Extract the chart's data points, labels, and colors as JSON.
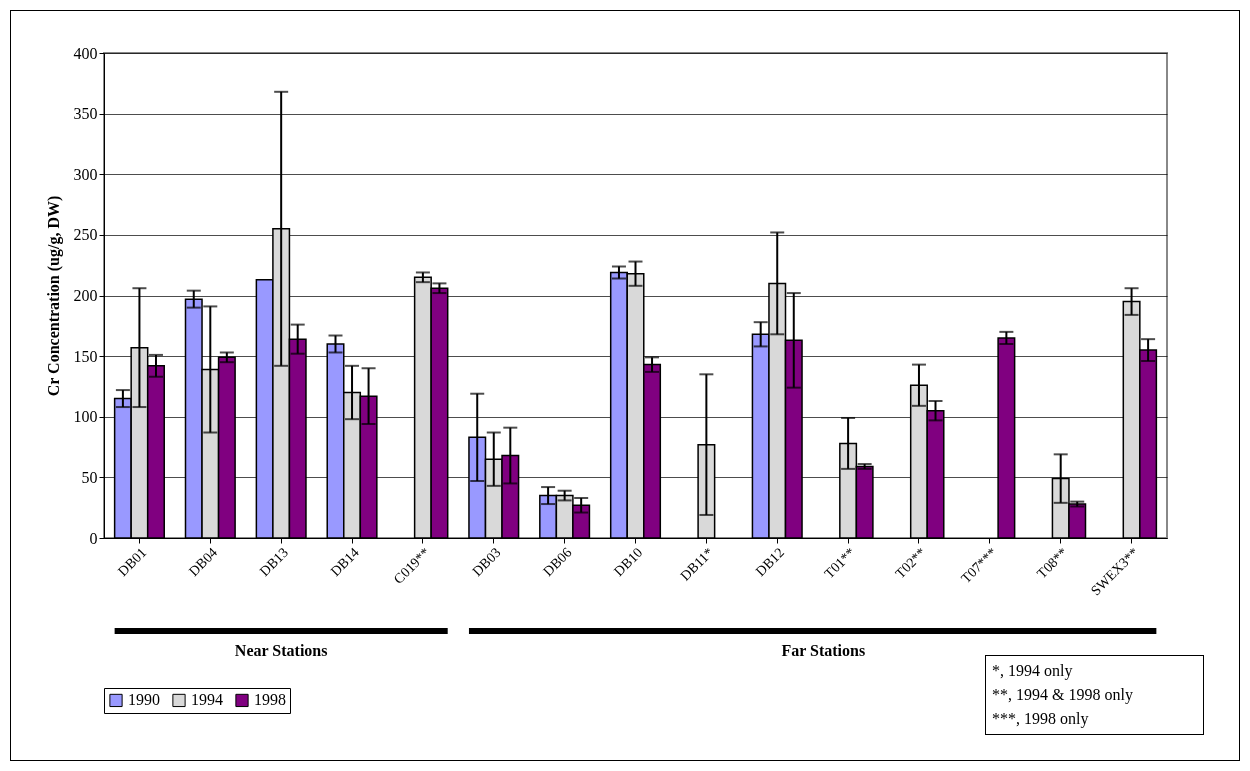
{
  "chart_data": {
    "type": "bar",
    "ylabel": "Cr Concentration (ug/g, DW)",
    "categories": [
      "DB01",
      "DB04",
      "DB13",
      "DB14",
      "C019**",
      "DB03",
      "DB06",
      "DB10",
      "DB11*",
      "DB12",
      "T01**",
      "T02**",
      "T07***",
      "T08**",
      "SWEX3**"
    ],
    "series": [
      {
        "name": "1990",
        "color": "#9999ff",
        "values": [
          115,
          197,
          213,
          160,
          null,
          83,
          35,
          219,
          null,
          168,
          null,
          null,
          null,
          null,
          null
        ],
        "errors": [
          7,
          7,
          null,
          7,
          null,
          36,
          7,
          5,
          null,
          10,
          null,
          null,
          null,
          null,
          null
        ]
      },
      {
        "name": "1994",
        "color": "#d9d9d9",
        "values": [
          157,
          139,
          255,
          120,
          215,
          65,
          35,
          218,
          77,
          210,
          78,
          126,
          null,
          49,
          195
        ],
        "errors": [
          49,
          52,
          113,
          22,
          4,
          22,
          4,
          10,
          58,
          42,
          21,
          17,
          null,
          20,
          11
        ]
      },
      {
        "name": "1998",
        "color": "#800080",
        "values": [
          142,
          149,
          164,
          117,
          206,
          68,
          27,
          143,
          null,
          163,
          59,
          105,
          165,
          28,
          155
        ],
        "errors": [
          9,
          4,
          12,
          23,
          4,
          23,
          6,
          6,
          null,
          39,
          2,
          8,
          5,
          2,
          9
        ]
      }
    ],
    "ylim": [
      0,
      400
    ],
    "yticks": [
      0,
      50,
      100,
      150,
      200,
      250,
      300,
      350,
      400
    ],
    "grid": "y",
    "legend": "bottom",
    "annotations": [
      "Near Stations",
      "Far Stations",
      "*, 1994 only",
      "**, 1994 & 1998 only",
      "***, 1998 only"
    ]
  }
}
